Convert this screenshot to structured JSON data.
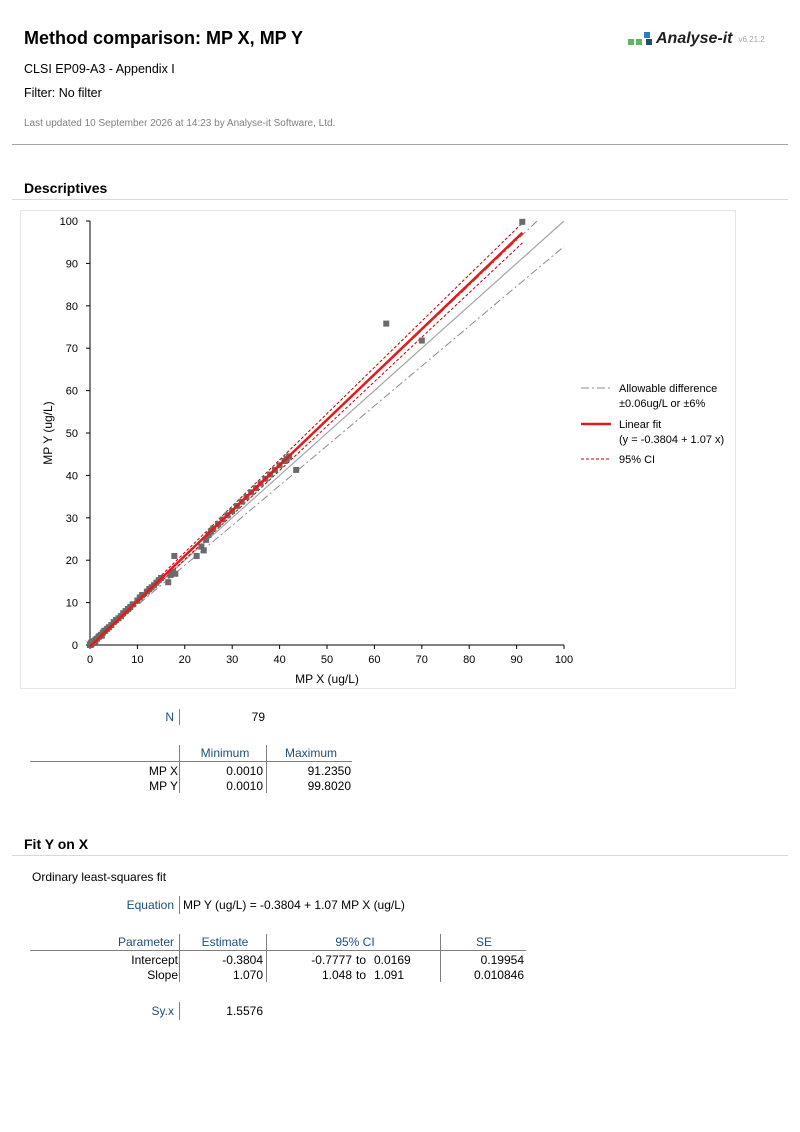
{
  "header": {
    "title": "Method comparison: MP X, MP Y",
    "subtitle": "CLSI EP09-A3 - Appendix I",
    "filter": "Filter: No filter",
    "updated": "Last updated 10 September 2026 at 14:23 by Analyse-it Software, Ltd."
  },
  "logo": {
    "name": "Analyse-it",
    "version": "v6.21.2",
    "colors": [
      "#5cb85c",
      "#2e7bbf",
      "#1f4e79"
    ]
  },
  "sections": {
    "descriptives": "Descriptives",
    "fit": "Fit Y on X"
  },
  "chart_data": {
    "type": "scatter",
    "xlabel": "MP X (ug/L)",
    "ylabel": "MP Y (ug/L)",
    "xlim": [
      0,
      100
    ],
    "ylim": [
      0,
      100
    ],
    "xticks": [
      "0",
      "10",
      "20",
      "30",
      "40",
      "50",
      "60",
      "70",
      "80",
      "90",
      "100"
    ],
    "yticks": [
      "0",
      "10",
      "20",
      "30",
      "40",
      "50",
      "60",
      "70",
      "80",
      "90",
      "100"
    ],
    "grid": false,
    "legend_position": "right",
    "colors": {
      "points": "#6b6b6b",
      "fit": "#e31a1c",
      "ci": "#c00000",
      "identity": "#a6a6a6",
      "allowable": "#8c8c8c"
    },
    "legend": [
      {
        "label": "Allowable difference",
        "sub": "±0.06ug/L or ±6%",
        "style": "dashdot"
      },
      {
        "label": "Linear fit",
        "sub": "(y = -0.3804 + 1.07 x)",
        "style": "solid-red"
      },
      {
        "label": "95% CI",
        "sub": "",
        "style": "dashed-red"
      }
    ],
    "fit": {
      "intercept": -0.3804,
      "slope": 1.07,
      "ci_low": {
        "intercept": -0.7777,
        "slope": 1.048
      },
      "ci_high": {
        "intercept": 0.0169,
        "slope": 1.091
      }
    },
    "points": [
      [
        0.001,
        0.001
      ],
      [
        0.1,
        0.1
      ],
      [
        0.2,
        0.15
      ],
      [
        0.3,
        0.3
      ],
      [
        0.4,
        0.35
      ],
      [
        0.5,
        0.5
      ],
      [
        0.6,
        0.6
      ],
      [
        0.8,
        0.8
      ],
      [
        1.0,
        1.0
      ],
      [
        1.2,
        1.3
      ],
      [
        1.5,
        1.5
      ],
      [
        1.8,
        1.9
      ],
      [
        2.0,
        2.1
      ],
      [
        2.3,
        2.4
      ],
      [
        2.7,
        2.9
      ],
      [
        3.0,
        3.3
      ],
      [
        3.2,
        3.4
      ],
      [
        3.6,
        3.8
      ],
      [
        4.0,
        4.2
      ],
      [
        4.5,
        4.7
      ],
      [
        5.0,
        5.4
      ],
      [
        5.5,
        5.9
      ],
      [
        6.0,
        6.3
      ],
      [
        6.5,
        6.8
      ],
      [
        7.0,
        7.5
      ],
      [
        7.5,
        8.0
      ],
      [
        8.0,
        8.5
      ],
      [
        8.5,
        9.0
      ],
      [
        9.0,
        9.6
      ],
      [
        10.0,
        10.5
      ],
      [
        10.5,
        11.2
      ],
      [
        11.0,
        11.8
      ],
      [
        12.0,
        12.6
      ],
      [
        12.5,
        13.2
      ],
      [
        13.0,
        13.6
      ],
      [
        13.5,
        14.1
      ],
      [
        14.0,
        14.7
      ],
      [
        14.5,
        15.3
      ],
      [
        15.0,
        15.8
      ],
      [
        16.5,
        14.8
      ],
      [
        17.0,
        16.5
      ],
      [
        17.5,
        17.3
      ],
      [
        17.8,
        21.0
      ],
      [
        18.0,
        16.8
      ],
      [
        22.5,
        21.0
      ],
      [
        23.5,
        23.2
      ],
      [
        24.0,
        22.3
      ],
      [
        24.5,
        24.8
      ],
      [
        25.0,
        26.0
      ],
      [
        25.5,
        26.8
      ],
      [
        26.0,
        27.5
      ],
      [
        27.0,
        28.5
      ],
      [
        28.0,
        29.6
      ],
      [
        29.0,
        30.6
      ],
      [
        30.0,
        31.6
      ],
      [
        31.0,
        32.8
      ],
      [
        32.0,
        33.8
      ],
      [
        33.0,
        34.9
      ],
      [
        34.0,
        36.0
      ],
      [
        35.0,
        37.0
      ],
      [
        36.0,
        38.1
      ],
      [
        37.0,
        39.2
      ],
      [
        38.0,
        40.2
      ],
      [
        39.0,
        41.3
      ],
      [
        40.0,
        42.4
      ],
      [
        41.0,
        43.4
      ],
      [
        41.5,
        43.9
      ],
      [
        42.0,
        44.5
      ],
      [
        43.5,
        41.3
      ],
      [
        0.05,
        0.2
      ],
      [
        0.15,
        0.0
      ],
      [
        0.25,
        0.5
      ],
      [
        0.7,
        0.5
      ],
      [
        1.1,
        0.9
      ],
      [
        2.5,
        2.2
      ],
      [
        62.5,
        75.8
      ],
      [
        70.0,
        71.8
      ],
      [
        91.2,
        99.8
      ],
      [
        0.35,
        0.6
      ]
    ]
  },
  "descriptives": {
    "n_label": "N",
    "n_value": "79",
    "col_min": "Minimum",
    "col_max": "Maximum",
    "rows": [
      {
        "name": "MP X",
        "min": "0.0010",
        "max": "91.2350"
      },
      {
        "name": "MP Y",
        "min": "0.0010",
        "max": "99.8020"
      }
    ]
  },
  "fit_section": {
    "method": "Ordinary least-squares fit",
    "equation_label": "Equation",
    "equation": "MP Y (ug/L) = -0.3804 + 1.07 MP X (ug/L)",
    "headers": {
      "parameter": "Parameter",
      "estimate": "Estimate",
      "ci": "95% CI",
      "se": "SE"
    },
    "params": [
      {
        "name": "Intercept",
        "estimate": "-0.3804",
        "ci_lo": "-0.7777",
        "to": "to",
        "ci_hi": "0.0169",
        "se": "0.19954"
      },
      {
        "name": "Slope",
        "estimate": "1.070",
        "ci_lo": "1.048",
        "to": "to",
        "ci_hi": "1.091",
        "se": "0.010846"
      }
    ],
    "syx_label": "Sy.x",
    "syx_value": "1.5576"
  }
}
